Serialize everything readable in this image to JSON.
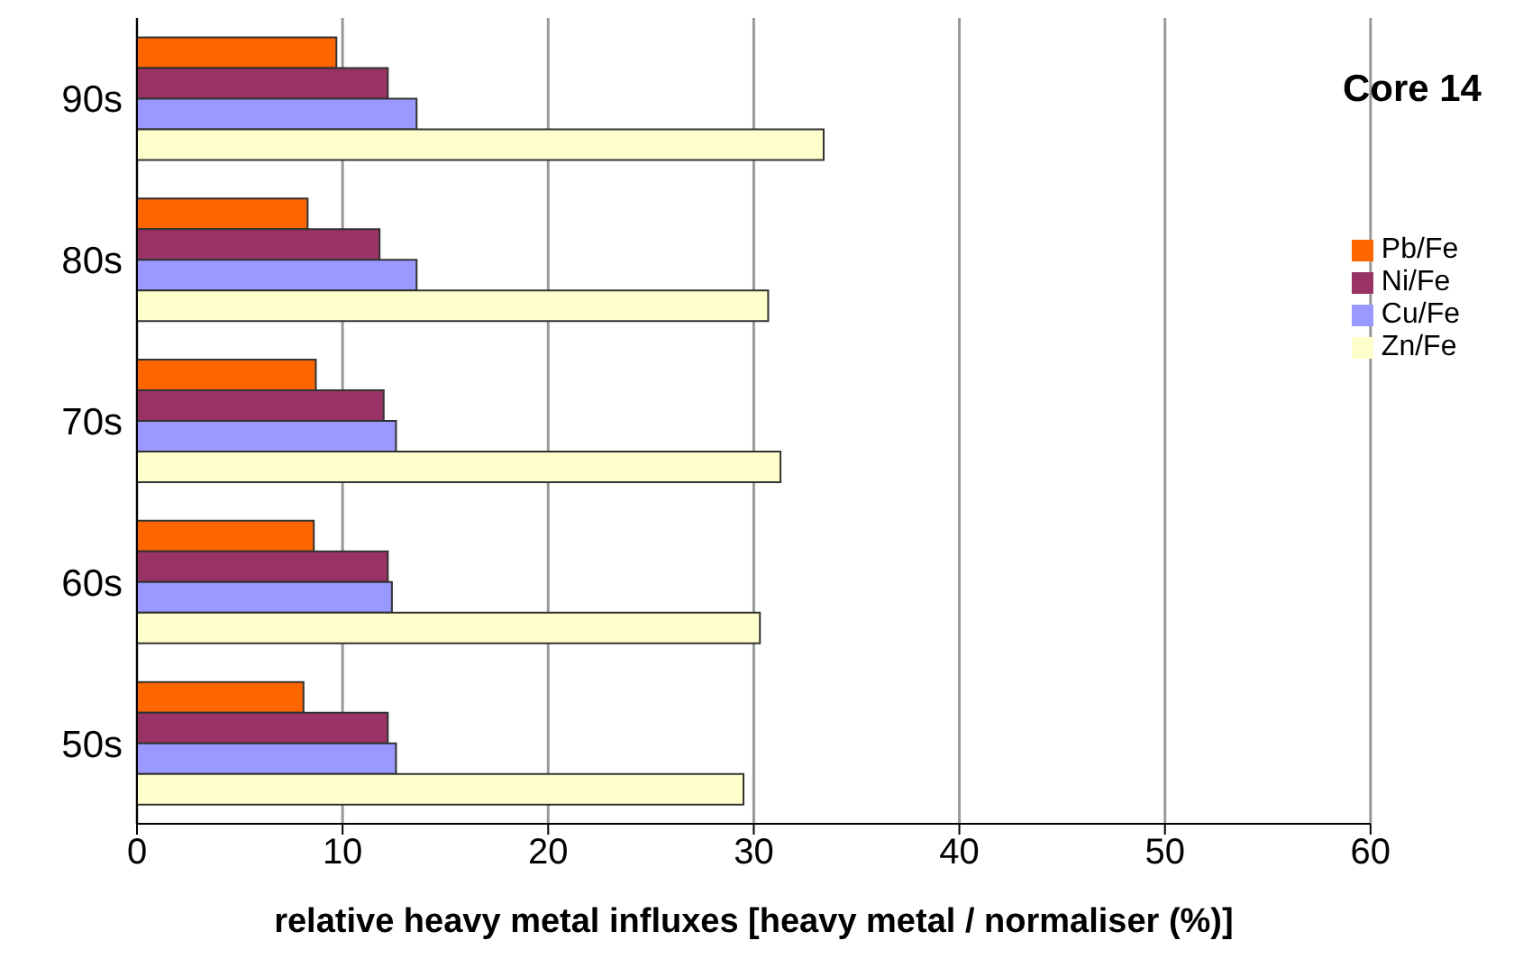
{
  "chart_data": {
    "type": "bar",
    "orientation": "horizontal",
    "title": "Core 14",
    "xlabel": "relative heavy metal influxes [heavy metal / normaliser (%)]",
    "categories": [
      "90s",
      "80s",
      "70s",
      "60s",
      "50s"
    ],
    "series": [
      {
        "name": "Pb/Fe",
        "color": "#ff6600",
        "values": [
          9.7,
          8.3,
          8.7,
          8.6,
          8.1
        ]
      },
      {
        "name": "Ni/Fe",
        "color": "#993366",
        "values": [
          12.2,
          11.8,
          12.0,
          12.2,
          12.2
        ]
      },
      {
        "name": "Cu/Fe",
        "color": "#9999ff",
        "values": [
          13.6,
          13.6,
          12.6,
          12.4,
          12.6
        ]
      },
      {
        "name": "Zn/Fe",
        "color": "#ffffcc",
        "values": [
          33.4,
          30.7,
          31.3,
          30.3,
          29.5
        ]
      }
    ],
    "xlim": [
      0,
      60
    ],
    "xticks": [
      0,
      10,
      20,
      30,
      40,
      50,
      60
    ],
    "grid": "x",
    "legend": "right"
  }
}
